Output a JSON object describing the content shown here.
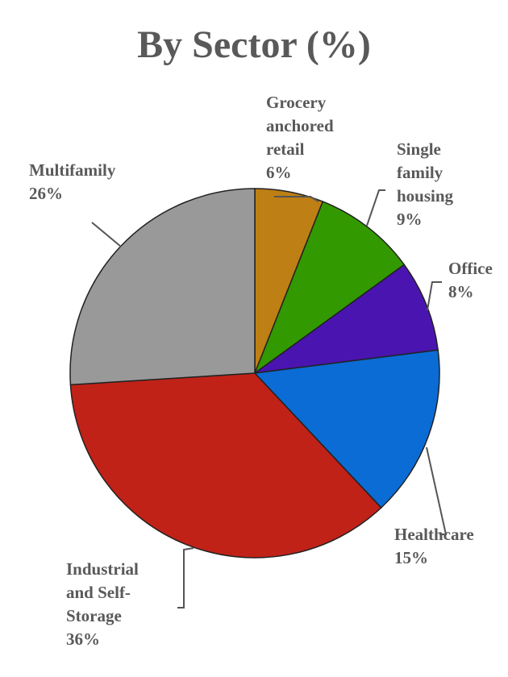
{
  "chart_data": {
    "type": "pie",
    "title": "By Sector (%)",
    "slices": [
      {
        "label": "Grocery anchored retail",
        "value": 6,
        "value_label": "6%",
        "color": "#BE7F14"
      },
      {
        "label": "Single family housing",
        "value": 9,
        "value_label": "9%",
        "color": "#339900"
      },
      {
        "label": "Office",
        "value": 8,
        "value_label": "8%",
        "color": "#4A14B0"
      },
      {
        "label": "Healthcare",
        "value": 15,
        "value_label": "15%",
        "color": "#0A6CD4"
      },
      {
        "label": "Industrial and Self-Storage",
        "value": 36,
        "value_label": "36%",
        "color": "#C02218"
      },
      {
        "label": "Multifamily",
        "value": 26,
        "value_label": "26%",
        "color": "#999999"
      }
    ],
    "legend": "none",
    "start_angle": "12 o'clock, clockwise"
  }
}
